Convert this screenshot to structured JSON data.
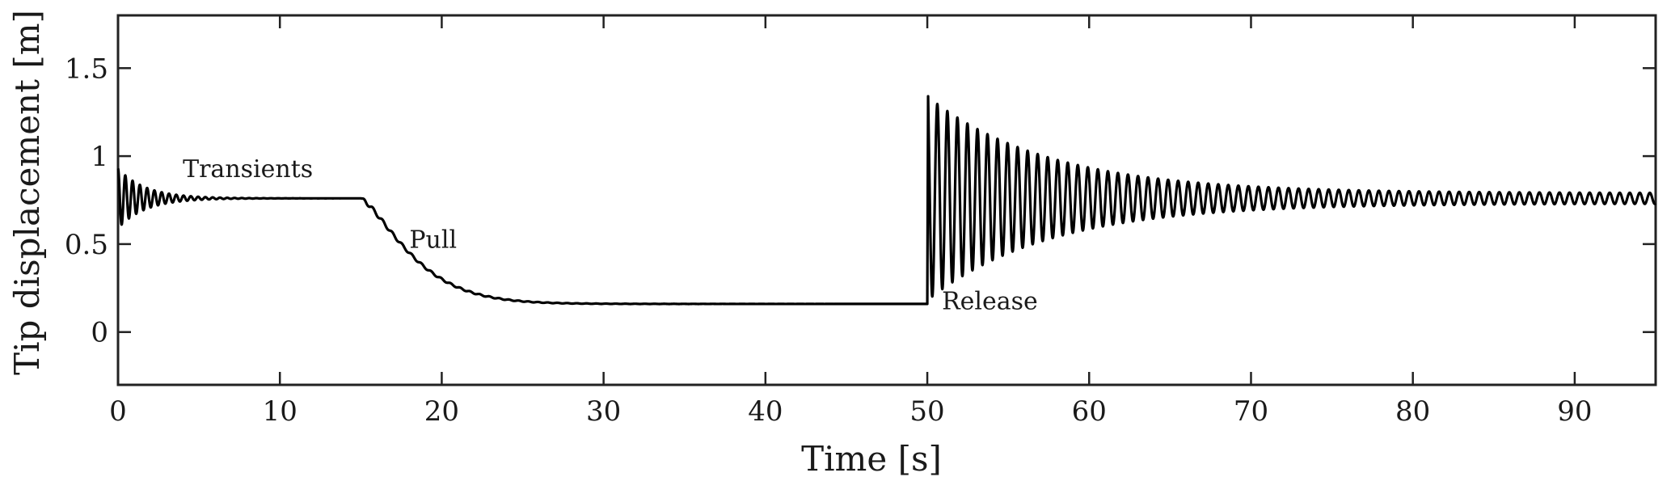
{
  "chart_data": {
    "type": "line",
    "title": "",
    "xlabel": "Time [s]",
    "ylabel": "Tip displacement [m]",
    "xlim": [
      0,
      95
    ],
    "ylim": [
      -0.3,
      1.8
    ],
    "xticks": [
      0,
      10,
      20,
      30,
      40,
      50,
      60,
      70,
      80,
      90
    ],
    "yticks": [
      0,
      0.5,
      1,
      1.5
    ],
    "xtick_labels": [
      "0",
      "10",
      "20",
      "30",
      "40",
      "50",
      "60",
      "70",
      "80",
      "90"
    ],
    "ytick_labels": [
      "0",
      "0.5",
      "1",
      "1.5"
    ],
    "grid": false,
    "color": "#000000",
    "annotations": [
      {
        "text": "Transients",
        "x": 4,
        "y": 0.88
      },
      {
        "text": "Pull",
        "x": 18,
        "y": 0.48
      },
      {
        "text": "Release",
        "x": 50.9,
        "y": 0.13
      }
    ],
    "series": [
      {
        "segments": [
          {
            "phase": "settle",
            "t_start": 0,
            "t_end": 15,
            "level": 0.76,
            "initial_amplitude": 0.17,
            "period_s": 0.45
          },
          {
            "phase": "decay",
            "t_start": 15,
            "t_end": 50,
            "from": 0.76,
            "to": 0.16
          },
          {
            "phase": "step",
            "t": 50,
            "peak": 1.34,
            "trough": 0.22
          },
          {
            "phase": "settle",
            "t_start": 50,
            "t_end": 95,
            "level": 0.76,
            "initial_amplitude": 0.58,
            "final_amplitude": 0.03,
            "period_s": 0.62
          }
        ]
      }
    ]
  }
}
